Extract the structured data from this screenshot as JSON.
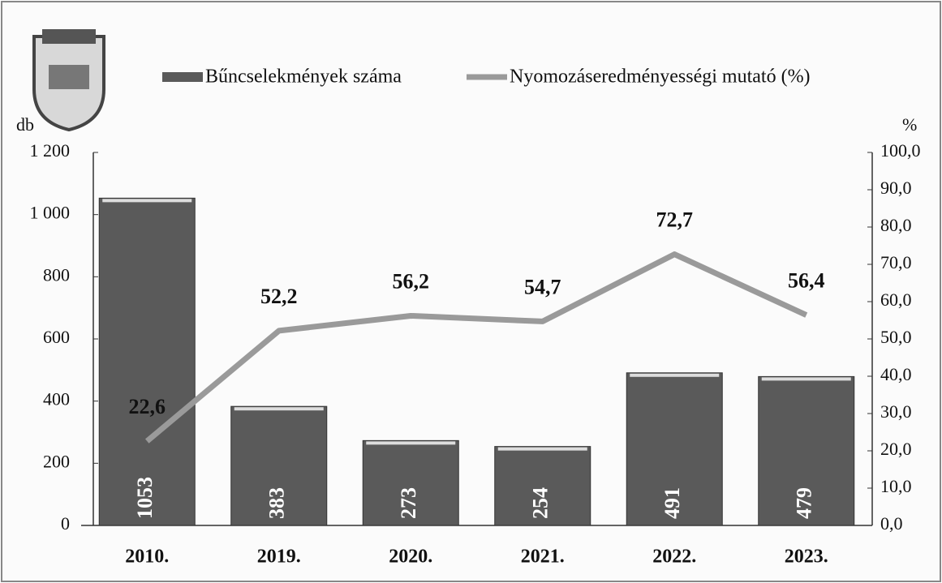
{
  "chart_data": {
    "type": "bar",
    "categories": [
      "2010.",
      "2019.",
      "2020.",
      "2021.",
      "2022.",
      "2023."
    ],
    "series": [
      {
        "name": "Bűncselekmények száma",
        "type": "bar",
        "color": "#5a5a5a",
        "values": [
          1053,
          383,
          273,
          254,
          491,
          479
        ]
      },
      {
        "name": "Nyomozáseredményességi mutató (%)",
        "type": "line",
        "axis": "y2",
        "color": "#9a9a9a",
        "values": [
          22.6,
          52.2,
          56.2,
          54.7,
          72.7,
          56.4
        ],
        "value_labels": [
          "22,6",
          "52,2",
          "56,2",
          "54,7",
          "72,7",
          "56,4"
        ]
      }
    ],
    "y_label": "db",
    "y2_label": "%",
    "ylim": [
      0,
      1200
    ],
    "yticks": [
      0,
      200,
      400,
      600,
      800,
      {
        "value": 1000,
        "label": "1 000"
      },
      {
        "value": 1200,
        "label": "1 200"
      }
    ],
    "y2lim": [
      0,
      100
    ],
    "y2ticks": [
      {
        "value": 0,
        "label": "0,0"
      },
      {
        "value": 10,
        "label": "10,0"
      },
      {
        "value": 20,
        "label": "20,0"
      },
      {
        "value": 30,
        "label": "30,0"
      },
      {
        "value": 40,
        "label": "40,0"
      },
      {
        "value": 50,
        "label": "50,0"
      },
      {
        "value": 60,
        "label": "60,0"
      },
      {
        "value": 70,
        "label": "70,0"
      },
      {
        "value": 80,
        "label": "80,0"
      },
      {
        "value": 90,
        "label": "90,0"
      },
      {
        "value": 100,
        "label": "100,0"
      }
    ],
    "grid": false
  }
}
